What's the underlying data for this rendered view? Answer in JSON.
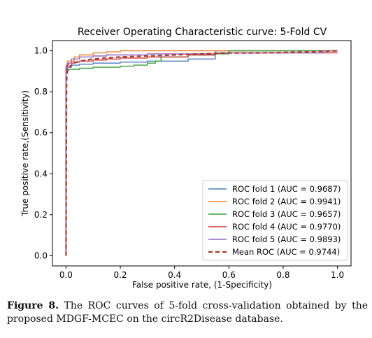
{
  "chart_data": {
    "type": "line",
    "title": "Receiver Operating Characteristic curve: 5-Fold CV",
    "xlabel": "False positive rate, (1-Specificity)",
    "ylabel": "True positive rate,(Sensitivity)",
    "xlim": [
      -0.05,
      1.05
    ],
    "ylim": [
      -0.05,
      1.05
    ],
    "xticks": [
      "0.0",
      "0.2",
      "0.4",
      "0.6",
      "0.8",
      "1.0"
    ],
    "yticks": [
      "0.0",
      "0.2",
      "0.4",
      "0.6",
      "0.8",
      "1.0"
    ],
    "grid": false,
    "legend_position": "lower-right",
    "series": [
      {
        "name": "ROC fold 1 (AUC = 0.9687)",
        "color": "#4e79bd",
        "dash": false,
        "x": [
          0,
          0,
          0.005,
          0.005,
          0.02,
          0.02,
          0.05,
          0.05,
          0.1,
          0.1,
          0.2,
          0.2,
          0.3,
          0.3,
          0.45,
          0.45,
          0.55,
          0.55,
          1.0
        ],
        "y": [
          0,
          0.9,
          0.9,
          0.92,
          0.92,
          0.93,
          0.93,
          0.935,
          0.935,
          0.94,
          0.94,
          0.945,
          0.945,
          0.95,
          0.95,
          0.96,
          0.96,
          1.0,
          1.0
        ]
      },
      {
        "name": "ROC fold 2 (AUC = 0.9941)",
        "color": "#f08030",
        "dash": false,
        "x": [
          0,
          0,
          0.005,
          0.005,
          0.03,
          0.03,
          0.05,
          0.05,
          0.1,
          0.1,
          0.15,
          0.15,
          0.2,
          0.2,
          1.0
        ],
        "y": [
          0,
          0.93,
          0.93,
          0.95,
          0.95,
          0.97,
          0.97,
          0.98,
          0.98,
          0.99,
          0.99,
          0.995,
          0.995,
          1.0,
          1.0
        ]
      },
      {
        "name": "ROC fold 3 (AUC = 0.9657)",
        "color": "#3a9d3a",
        "dash": false,
        "x": [
          0,
          0,
          0.005,
          0.005,
          0.01,
          0.01,
          0.05,
          0.05,
          0.1,
          0.1,
          0.2,
          0.2,
          0.25,
          0.25,
          0.3,
          0.3,
          0.33,
          0.33,
          0.35,
          0.35,
          0.45,
          0.45,
          0.55,
          0.55,
          0.6,
          0.6,
          1.0
        ],
        "y": [
          0,
          0.9,
          0.9,
          0.905,
          0.905,
          0.91,
          0.91,
          0.915,
          0.915,
          0.92,
          0.92,
          0.925,
          0.925,
          0.93,
          0.93,
          0.94,
          0.94,
          0.95,
          0.95,
          0.97,
          0.97,
          0.98,
          0.98,
          0.985,
          0.985,
          1.0,
          1.0
        ]
      },
      {
        "name": "ROC fold 4 (AUC = 0.9770)",
        "color": "#cc3333",
        "dash": false,
        "x": [
          0,
          0,
          0.003,
          0.003,
          0.01,
          0.01,
          0.03,
          0.03,
          0.05,
          0.05,
          0.1,
          0.1,
          0.15,
          0.15,
          0.2,
          0.2,
          0.3,
          0.3,
          0.45,
          0.45,
          0.55,
          0.55,
          1.0
        ],
        "y": [
          0,
          0.91,
          0.91,
          0.93,
          0.93,
          0.94,
          0.94,
          0.945,
          0.945,
          0.95,
          0.95,
          0.955,
          0.955,
          0.96,
          0.96,
          0.965,
          0.965,
          0.97,
          0.97,
          0.98,
          0.98,
          0.99,
          0.99
        ]
      },
      {
        "name": "ROC fold 5 (AUC = 0.9893)",
        "color": "#9467bd",
        "dash": false,
        "x": [
          0,
          0,
          0.005,
          0.005,
          0.02,
          0.02,
          0.05,
          0.05,
          0.1,
          0.1,
          0.15,
          0.15,
          0.3,
          0.3,
          0.55,
          0.55,
          0.95,
          0.95,
          1.0
        ],
        "y": [
          0,
          0.92,
          0.92,
          0.94,
          0.94,
          0.96,
          0.96,
          0.97,
          0.97,
          0.975,
          0.975,
          0.98,
          0.98,
          0.985,
          0.985,
          0.99,
          0.99,
          1.0,
          1.0
        ]
      },
      {
        "name": "Mean ROC (AUC = 0.9744)",
        "color": "#a83a2a",
        "dash": true,
        "x": [
          0,
          0.002,
          0.005,
          0.01,
          0.03,
          0.05,
          0.1,
          0.15,
          0.2,
          0.3,
          0.4,
          0.5,
          0.6,
          0.7,
          0.8,
          0.9,
          1.0
        ],
        "y": [
          0,
          0.85,
          0.9,
          0.92,
          0.94,
          0.95,
          0.96,
          0.965,
          0.97,
          0.975,
          0.98,
          0.985,
          0.99,
          0.99,
          0.992,
          0.995,
          1.0
        ]
      }
    ]
  },
  "caption": {
    "label": "Figure 8.",
    "text": "The ROC curves of 5-fold cross-validation obtained by the proposed MDGF-MCEC on the circR2Disease database."
  }
}
